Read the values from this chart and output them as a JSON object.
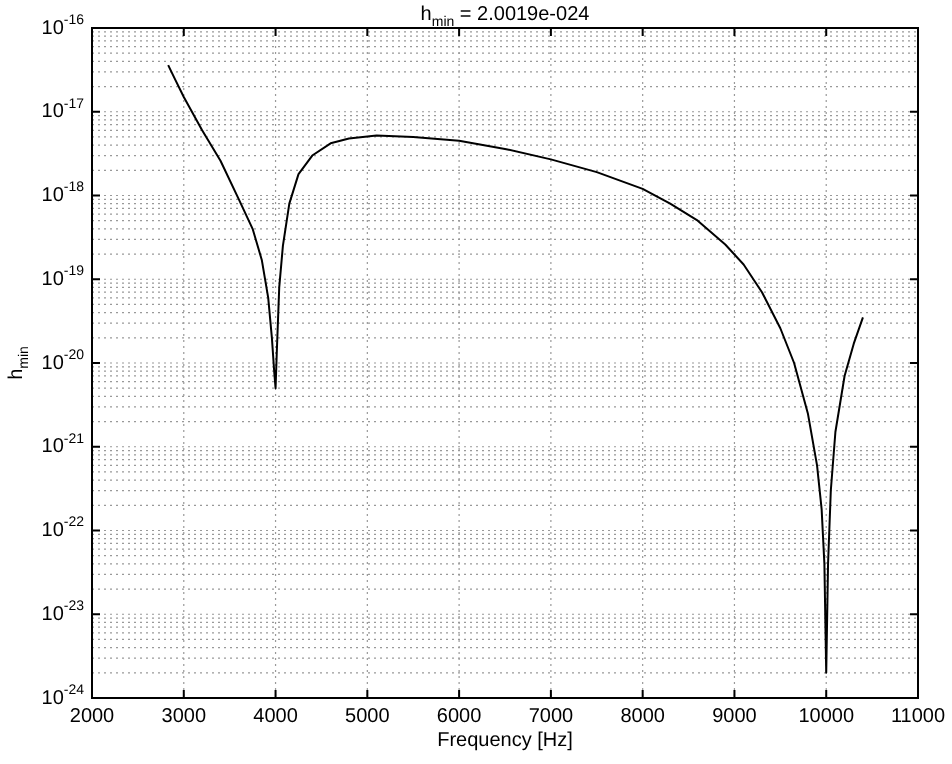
{
  "chart_data": {
    "type": "line",
    "title": "h$_{min}$ = 2.0019e-024",
    "xlabel": "Frequency [Hz]",
    "ylabel": "h$_{min}$",
    "x": [
      2830,
      2900,
      3000,
      3200,
      3400,
      3600,
      3750,
      3850,
      3920,
      3960,
      3985,
      4000,
      4015,
      4040,
      4080,
      4150,
      4250,
      4400,
      4600,
      4800,
      5100,
      5500,
      6000,
      6500,
      7000,
      7500,
      8000,
      8300,
      8600,
      8900,
      9100,
      9300,
      9500,
      9650,
      9800,
      9900,
      9950,
      9980,
      10000,
      10020,
      10050,
      10100,
      10200,
      10300,
      10400
    ],
    "series": [
      {
        "color": "#000000",
        "values": [
          3.6e-17,
          2.5e-17,
          1.5e-17,
          6e-18,
          2.6e-18,
          9e-19,
          4e-19,
          1.7e-19,
          6e-20,
          2e-20,
          8e-21,
          5e-21,
          1.5e-20,
          8e-20,
          2.5e-19,
          8e-19,
          1.8e-18,
          3e-18,
          4.2e-18,
          4.8e-18,
          5.2e-18,
          5e-18,
          4.5e-18,
          3.6e-18,
          2.7e-18,
          1.9e-18,
          1.2e-18,
          8e-19,
          5e-19,
          2.6e-19,
          1.5e-19,
          7e-20,
          2.6e-20,
          1e-20,
          2.5e-21,
          6e-22,
          1.8e-22,
          4e-23,
          2e-24,
          4e-23,
          3e-22,
          1.5e-21,
          7e-21,
          1.7e-20,
          3.5e-20
        ]
      }
    ],
    "xlim": [
      2000,
      11000
    ],
    "xticks": [
      2000,
      3000,
      4000,
      5000,
      6000,
      7000,
      8000,
      9000,
      10000,
      11000
    ],
    "ylim": [
      1e-24,
      1e-16
    ],
    "log": "y",
    "yticks": [
      {
        "value": 1e-24,
        "label": "10$^{-24}$"
      },
      {
        "value": 1e-23,
        "label": "10$^{-23}$"
      },
      {
        "value": 1e-22,
        "label": "10$^{-22}$"
      },
      {
        "value": 1e-21,
        "label": "10$^{-21}$"
      },
      {
        "value": 1e-20,
        "label": "10$^{-20}$"
      },
      {
        "value": 1e-19,
        "label": "10$^{-19}$"
      },
      {
        "value": 1e-18,
        "label": "10$^{-18}$"
      },
      {
        "value": 1e-17,
        "label": "10$^{-17}$"
      },
      {
        "value": 1e-16,
        "label": "10$^{-16}$"
      }
    ],
    "grid": true,
    "legend": false,
    "marker": "none",
    "line_style": "solid"
  }
}
